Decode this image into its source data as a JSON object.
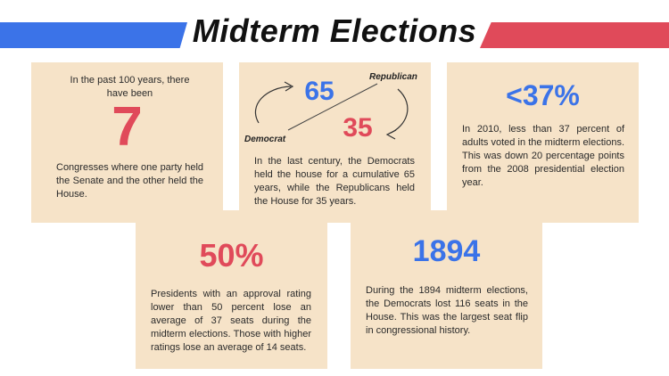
{
  "header": {
    "title": "Midterm Elections"
  },
  "colors": {
    "blue": "#3b73e8",
    "red": "#e04a5a",
    "card": "#f6e3c8"
  },
  "cards": {
    "congress": {
      "intro": "In the past 100 years, there have been",
      "number": "7",
      "text": "Congresses where one party held the Senate and the other held the House."
    },
    "house": {
      "dem_value": "65",
      "rep_value": "35",
      "dem_label": "Democrat",
      "rep_label": "Republican",
      "text": "In the last century, the Democrats held the house for a cumulative 65 years, while the Republicans held the House for 35 years."
    },
    "turnout": {
      "stat": "<37%",
      "text": "In 2010, less than 37 percent of adults voted in the midterm elections. This was down 20 percentage points from the 2008 presidential election year."
    },
    "approval": {
      "stat": "50%",
      "text": "Presidents with an approval rating lower than 50 percent lose an average of 37 seats during the midterm elections. Those with higher ratings lose an average of 14 seats."
    },
    "flip": {
      "stat": "1894",
      "text": "During the 1894 midterm elections, the Democrats lost 116 seats in the House. This was the largest seat flip in congressional history."
    }
  }
}
